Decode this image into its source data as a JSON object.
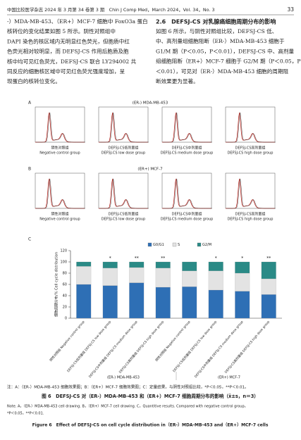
{
  "header": {
    "journal": "中国比较医学杂志 2024 年 3 月第 34 卷第 3 期　Chin J Comp Med，March 2024，Vol. 34，No. 3",
    "page": "33"
  },
  "left_column": [
    "-）MDA-MB-453、（ER+）MCF-7 细胞中 FoxO3a 蛋白",
    "核转位的变化结果如图 5 所示。阴性对照组中",
    "DAPI 染色的核区域内无明显红色荧光，但胞质中红",
    "色荧光相对较明显，而 DEFSJ-CS 作用后胞质及胞",
    "核中均可见红色荧光，DEFSJ-CS 联合 LY294002 共",
    "同反应的细胞核区域中可见红色荧光强度增加，呈",
    "现蛋白的核转位变化。"
  ],
  "right_column": {
    "heading": "2.6　DEFSJ-CS 对乳腺癌细胞周期分布的影响",
    "lines": [
      "如图 6 所示，与阴性对照组比较，DEFSJ-CS 低、",
      "中、高剂量组细胞阻断（ER-）MDA-MB-453 细胞于",
      "G1/M 期（P＜0.05，P＜0.01），DEFSJ-CS 中、高剂量",
      "组细胞阻断（ER+）MCF-7 细胞于 G2/M 期（P＜0.05，P",
      "＜0.01），可见对（ER-）MDA-MB-453 细胞的周期阻",
      "断效果更为显著。"
    ]
  },
  "figure": {
    "panel_a": {
      "label": "A",
      "title": "(ER-) MDA-MB-453"
    },
    "panel_b": {
      "label": "B",
      "title": "(ER+) MCF-7"
    },
    "panel_c": {
      "label": "C"
    },
    "groups_cn": [
      "阴性对照组",
      "DEFSJ-CS低剂量组",
      "DEFSJ-CS中剂量组",
      "DEFSJ-CS高剂量组"
    ],
    "groups_en": [
      "Negative control group",
      "DEFSJ-CS low dose group",
      "DEFSJ-CS medium dose group",
      "DEFSJ-CS high dose group"
    ],
    "note_cn": "注：A：（ER-）MDA-MB-453 细胞效果图；B：（ER+）MCF-7 细胞效果图；C：定量结果。与阴性对照组比较，*P＜0.05，**P＜0.01。",
    "caption_cn": "图 6　DEFSJ-CS 对（ER-）MDA-MB-453 和（ER+）MCF-7 细胞周期分布的影响（x̄±s，n＝3）",
    "note_en": [
      "Note. A，（ER-）MDA-MB-453 cell drawing. B，（ER+）MCF-7 cell drawing. C，Quantitive results. Compared with negative control group，",
      "*P＜0.05，**P＜0.01."
    ],
    "caption_en": "Figure 6　Effect of DEFSJ-CS on cell cycle distribution in（ER-）MDA-MB-453 and（ER+）MCF-7 cells"
  },
  "chart_data": {
    "type": "stacked-bar",
    "y_label": "细胞周期分布/% Cell cycle distribution",
    "categories": [
      "阴性对照组 Negative control group",
      "DEFSJ-CS低剂量组 DEFSJ-CS low dose group",
      "DEFSJ-CS中剂量组 DEFSJ-CS medium dose group",
      "DEFSJ-CS高剂量组 DEFSJ-CS high dose group",
      "阴性对照组 Negative control group",
      "DEFSJ-CS低剂量组 DEFSJ-CS low dose group",
      "DEFSJ-CS中剂量组 DEFSJ-CS medium dose group",
      "DEFSJ-CS高剂量组 DEFSJ-CS high dose group"
    ],
    "groups": [
      "(ER-) MDA-MB-453",
      "(ER+) MCF-7"
    ],
    "series": [
      {
        "name": "G0/G1",
        "color": "#2e6fb5",
        "values": [
          60,
          58,
          63,
          55,
          56,
          50,
          48,
          42
        ]
      },
      {
        "name": "S",
        "color": "#e3e3e3",
        "values": [
          32,
          31,
          27,
          34,
          28,
          34,
          32,
          28
        ]
      },
      {
        "name": "G2/M",
        "color": "#2a8a86",
        "values": [
          8,
          11,
          10,
          11,
          16,
          16,
          20,
          30
        ]
      }
    ],
    "annotations": [
      null,
      "*",
      "**",
      "**",
      null,
      "*",
      "*",
      "**"
    ],
    "ylim": [
      0,
      120
    ],
    "yticks": [
      0,
      20,
      40,
      60,
      80,
      100,
      120
    ]
  }
}
